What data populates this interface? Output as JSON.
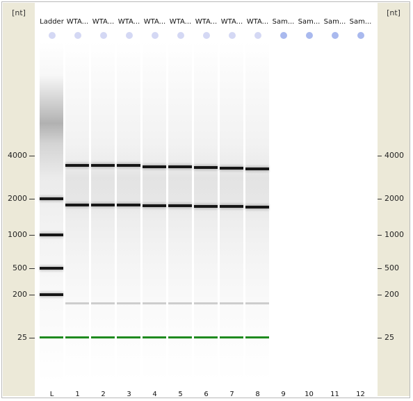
{
  "axis": {
    "unit": "[nt]",
    "ticks": [
      {
        "label": "4000"
      },
      {
        "label": "2000"
      },
      {
        "label": "1000"
      },
      {
        "label": "500"
      },
      {
        "label": "200"
      },
      {
        "label": "25"
      }
    ]
  },
  "lanes": [
    {
      "header": "Ladder",
      "footer": "L"
    },
    {
      "header": "WTA...",
      "footer": "1"
    },
    {
      "header": "WTA...",
      "footer": "2"
    },
    {
      "header": "WTA...",
      "footer": "3"
    },
    {
      "header": "WTA...",
      "footer": "4"
    },
    {
      "header": "WTA...",
      "footer": "5"
    },
    {
      "header": "WTA...",
      "footer": "6"
    },
    {
      "header": "WTA...",
      "footer": "7"
    },
    {
      "header": "WTA...",
      "footer": "8"
    },
    {
      "header": "Sam...",
      "footer": "9"
    },
    {
      "header": "Sam...",
      "footer": "10"
    },
    {
      "header": "Sam...",
      "footer": "11"
    },
    {
      "header": "Sam...",
      "footer": "12"
    }
  ],
  "colors": {
    "axis_panel": "#ece9d8",
    "band": "#161616",
    "marker": "#1e8a1e",
    "sample_dot": "#d4d8f4",
    "empty_dot": "#a9b9ee"
  }
}
